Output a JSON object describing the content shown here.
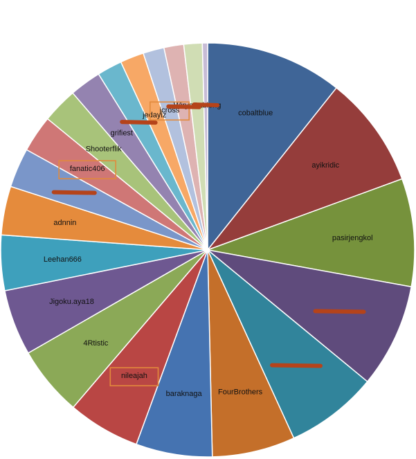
{
  "chart_data": {
    "type": "pie",
    "title": "",
    "slices": [
      {
        "label": "cobaltblue",
        "value": 10.4,
        "color": "#3f6597"
      },
      {
        "label": "ayikridic",
        "value": 8.5,
        "color": "#953d3b"
      },
      {
        "label": "pasirjengkol",
        "value": 8.2,
        "color": "#76923c"
      },
      {
        "label": "",
        "value": 7.9,
        "color": "#5f4b7c",
        "redacted": true
      },
      {
        "label": "",
        "value": 7.0,
        "color": "#31849b",
        "redacted": true
      },
      {
        "label": "FourBrothers",
        "value": 6.3,
        "color": "#c46f2a"
      },
      {
        "label": "baraknaga",
        "value": 5.8,
        "color": "#4573b1"
      },
      {
        "label": "nileajah",
        "value": 5.5,
        "color": "#b94644",
        "highlighted": true
      },
      {
        "label": "4Rtistic",
        "value": 5.3,
        "color": "#8ba957"
      },
      {
        "label": "Jigoku.aya18",
        "value": 5.0,
        "color": "#6e5891"
      },
      {
        "label": "Leehan666",
        "value": 4.2,
        "color": "#3ea0bc"
      },
      {
        "label": "adnnin",
        "value": 3.7,
        "color": "#e58b3c"
      },
      {
        "label": "",
        "value": 3.0,
        "color": "#7a96c9",
        "redacted": true
      },
      {
        "label": "fanatic406",
        "value": 2.8,
        "color": "#cf7776",
        "highlighted": true
      },
      {
        "label": "Shooterflik",
        "value": 2.7,
        "color": "#a8c37a"
      },
      {
        "label": "grifiest",
        "value": 2.4,
        "color": "#9483b0"
      },
      {
        "label": "",
        "value": 1.9,
        "color": "#6ab7cd",
        "redacted": true
      },
      {
        "label": "jedayiz",
        "value": 1.8,
        "color": "#f7a866"
      },
      {
        "label": "jcross",
        "value": 1.6,
        "color": "#b2c1de",
        "highlighted": true
      },
      {
        "label": "",
        "value": 1.5,
        "color": "#deb3b2",
        "redacted": true
      },
      {
        "label": "WiryoSableng",
        "value": 1.4,
        "color": "#d0ddb4"
      },
      {
        "label": "",
        "value": 0.4,
        "color": "#c7bcd6",
        "redacted": true
      }
    ]
  }
}
